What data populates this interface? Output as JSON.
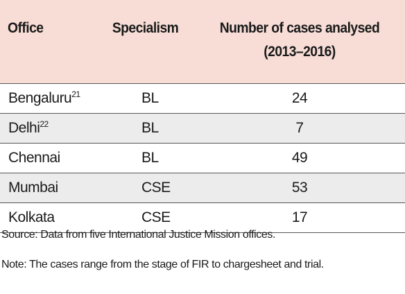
{
  "table": {
    "headers": {
      "office": "Office",
      "specialism": "Specialism",
      "cases_line1": "Number of cases analysed",
      "cases_line2": "(2013–2016)"
    },
    "rows": [
      {
        "office": "Bengaluru",
        "footnote": "21",
        "specialism": "BL",
        "cases": "24"
      },
      {
        "office": "Delhi",
        "footnote": "22",
        "specialism": "BL",
        "cases": "7"
      },
      {
        "office": "Chennai",
        "footnote": "",
        "specialism": "BL",
        "cases": "49"
      },
      {
        "office": "Mumbai",
        "footnote": "",
        "specialism": "CSE",
        "cases": "53"
      },
      {
        "office": "Kolkata",
        "footnote": "",
        "specialism": "CSE",
        "cases": "17"
      }
    ],
    "header_bg": "#f7ddd6",
    "alt_row_bg": "#ececec"
  },
  "notes": {
    "source": "Source: Data from five International Justice Mission offices.",
    "note": "Note: The cases range from the stage of FIR to chargesheet and trial."
  }
}
